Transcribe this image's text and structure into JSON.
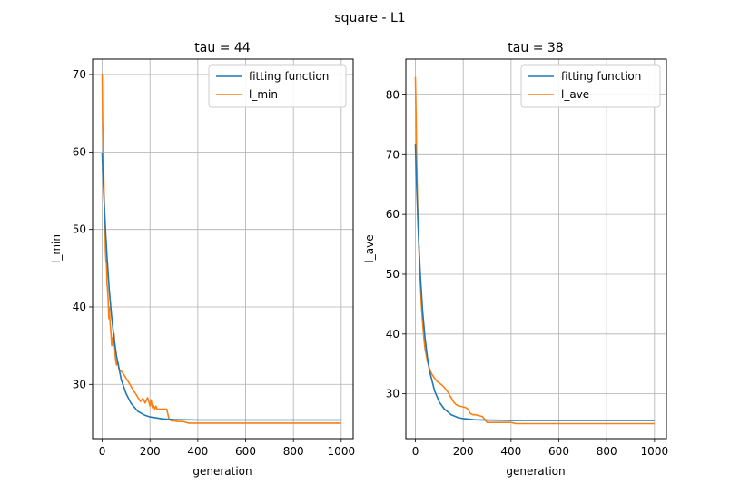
{
  "figure": {
    "suptitle": "square - L1"
  },
  "colors": {
    "fit": "#1f77b4",
    "data": "#ff7f0e",
    "grid": "#b0b0b0",
    "axis": "#000000"
  },
  "chart_data": [
    {
      "type": "line",
      "title": "tau = 44",
      "xlabel": "generation",
      "ylabel": "l_min",
      "xlim": [
        -40,
        1050
      ],
      "ylim": [
        23,
        72
      ],
      "xticks": [
        0,
        200,
        400,
        600,
        800,
        1000
      ],
      "yticks": [
        30,
        40,
        50,
        60,
        70
      ],
      "grid": true,
      "legend_position": "top-right",
      "series": [
        {
          "name": "fitting function",
          "x": [
            0,
            5,
            10,
            15,
            20,
            30,
            40,
            50,
            60,
            80,
            100,
            120,
            150,
            180,
            200,
            250,
            300,
            400,
            600,
            800,
            1000
          ],
          "y": [
            59.8,
            55.9,
            52.3,
            49.3,
            46.6,
            42.1,
            38.6,
            35.9,
            33.7,
            30.6,
            28.8,
            27.6,
            26.5,
            26.0,
            25.8,
            25.55,
            25.45,
            25.4,
            25.4,
            25.4,
            25.4
          ]
        },
        {
          "name": "l_min",
          "x": [
            0,
            2,
            4,
            6,
            8,
            10,
            12,
            14,
            16,
            18,
            20,
            22,
            25,
            28,
            30,
            33,
            36,
            40,
            42,
            45,
            48,
            50,
            55,
            60,
            65,
            70,
            75,
            80,
            85,
            90,
            100,
            110,
            120,
            130,
            140,
            150,
            160,
            170,
            180,
            190,
            200,
            205,
            210,
            215,
            220,
            225,
            230,
            240,
            250,
            260,
            270,
            280,
            290,
            300,
            320,
            340,
            360,
            400,
            600,
            800,
            1000
          ],
          "y": [
            70,
            63.5,
            61,
            58,
            55,
            52,
            50,
            47,
            46,
            45.5,
            43,
            42.5,
            41,
            38.5,
            40,
            38,
            37,
            35,
            36,
            35.5,
            35,
            36.5,
            33.5,
            32.5,
            33,
            32,
            31.8,
            31.7,
            31.5,
            31.3,
            30.8,
            30.3,
            29.8,
            29.2,
            28.8,
            28.3,
            27.8,
            28.2,
            27.6,
            28.3,
            27.2,
            28.0,
            27.0,
            27.3,
            26.8,
            27.2,
            26.8,
            26.8,
            26.8,
            26.8,
            26.8,
            25.5,
            25.3,
            25.3,
            25.2,
            25.2,
            25.0,
            25.0,
            25.0,
            25.0,
            25.0
          ]
        }
      ]
    },
    {
      "type": "line",
      "title": "tau = 38",
      "xlabel": "generation",
      "ylabel": "l_ave",
      "xlim": [
        -40,
        1050
      ],
      "ylim": [
        22.5,
        86
      ],
      "xticks": [
        0,
        200,
        400,
        600,
        800,
        1000
      ],
      "yticks": [
        30,
        40,
        50,
        60,
        70,
        80
      ],
      "grid": true,
      "legend_position": "top-right",
      "series": [
        {
          "name": "fitting function",
          "x": [
            0,
            5,
            10,
            15,
            20,
            30,
            40,
            50,
            60,
            80,
            100,
            120,
            150,
            180,
            200,
            250,
            300,
            400,
            600,
            800,
            1000
          ],
          "y": [
            71.7,
            65.0,
            59.2,
            54.4,
            50.3,
            43.9,
            39.4,
            36.1,
            33.7,
            30.5,
            28.6,
            27.5,
            26.5,
            26.0,
            25.85,
            25.65,
            25.6,
            25.55,
            25.55,
            25.55,
            25.55
          ]
        },
        {
          "name": "l_ave",
          "x": [
            0,
            3,
            5,
            8,
            10,
            15,
            20,
            25,
            30,
            35,
            40,
            45,
            50,
            55,
            60,
            70,
            80,
            90,
            100,
            110,
            120,
            130,
            140,
            150,
            160,
            170,
            180,
            190,
            200,
            210,
            220,
            230,
            240,
            250,
            260,
            270,
            280,
            290,
            300,
            350,
            400,
            420,
            500,
            600,
            800,
            1000
          ],
          "y": [
            83,
            76,
            70,
            64,
            60,
            54,
            49,
            45,
            42,
            39.5,
            37.5,
            36.5,
            35.5,
            34.7,
            34.0,
            33.2,
            32.6,
            32.1,
            31.8,
            31.5,
            31.1,
            30.6,
            30.0,
            29.3,
            28.6,
            28.2,
            28.0,
            27.9,
            27.8,
            27.7,
            27.4,
            26.7,
            26.5,
            26.5,
            26.4,
            26.3,
            26.2,
            25.7,
            25.2,
            25.2,
            25.2,
            25.0,
            25.0,
            25.0,
            25.0,
            25.0
          ]
        }
      ]
    }
  ]
}
